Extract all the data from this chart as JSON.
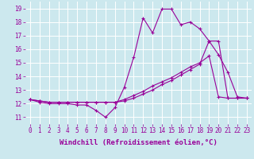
{
  "bg_color": "#cce8ee",
  "line_color": "#990099",
  "xlabel": "Windchill (Refroidissement éolien,°C)",
  "ylabel_ticks": [
    11,
    12,
    13,
    14,
    15,
    16,
    17,
    18,
    19
  ],
  "xlim": [
    -0.5,
    23.5
  ],
  "ylim": [
    10.5,
    19.5
  ],
  "grid_color": "#ffffff",
  "series1_x": [
    0,
    1,
    2,
    3,
    4,
    5,
    6,
    7,
    8,
    9,
    10,
    11,
    12,
    13,
    14,
    15,
    16,
    17,
    18,
    19,
    20,
    21,
    22,
    23
  ],
  "series1_y": [
    12.3,
    12.1,
    12.0,
    12.0,
    12.0,
    11.9,
    11.9,
    11.5,
    11.0,
    11.7,
    13.2,
    15.4,
    18.3,
    17.2,
    18.95,
    18.95,
    17.8,
    18.0,
    17.5,
    16.6,
    15.6,
    14.3,
    12.5,
    12.4
  ],
  "series2_x": [
    0,
    1,
    2,
    3,
    4,
    5,
    6,
    7,
    8,
    9,
    10,
    11,
    12,
    13,
    14,
    15,
    16,
    17,
    18,
    19,
    20,
    21,
    22,
    23
  ],
  "series2_y": [
    12.3,
    12.2,
    12.1,
    12.1,
    12.1,
    12.1,
    12.1,
    12.1,
    12.1,
    12.1,
    12.3,
    12.6,
    12.9,
    13.3,
    13.6,
    13.9,
    14.3,
    14.7,
    15.0,
    15.5,
    12.5,
    12.4,
    12.4,
    12.4
  ],
  "series3_x": [
    0,
    1,
    2,
    3,
    4,
    5,
    6,
    7,
    8,
    9,
    10,
    11,
    12,
    13,
    14,
    15,
    16,
    17,
    18,
    19,
    20,
    21,
    22,
    23
  ],
  "series3_y": [
    12.3,
    12.2,
    12.1,
    12.1,
    12.1,
    12.1,
    12.1,
    12.1,
    12.1,
    12.1,
    12.2,
    12.4,
    12.7,
    13.0,
    13.4,
    13.7,
    14.1,
    14.5,
    14.9,
    16.6,
    16.6,
    12.4,
    12.4,
    12.4
  ],
  "marker": "+",
  "markersize": 3,
  "linewidth": 0.8,
  "tick_fontsize": 5.5,
  "xlabel_fontsize": 6.5
}
